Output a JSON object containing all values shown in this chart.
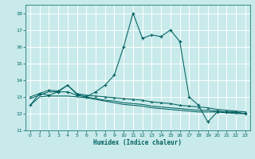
{
  "title": "",
  "xlabel": "Humidex (Indice chaleur)",
  "ylabel": "",
  "bg_color": "#c8eaea",
  "grid_color": "#ffffff",
  "line_color": "#006060",
  "xlim": [
    -0.5,
    23.5
  ],
  "ylim": [
    11,
    18.5
  ],
  "yticks": [
    11,
    12,
    13,
    14,
    15,
    16,
    17,
    18
  ],
  "xticks": [
    0,
    1,
    2,
    3,
    4,
    5,
    6,
    7,
    8,
    9,
    10,
    11,
    12,
    13,
    14,
    15,
    16,
    17,
    18,
    19,
    20,
    21,
    22,
    23
  ],
  "curve1_x": [
    0,
    1,
    2,
    3,
    4,
    5,
    6,
    7,
    8,
    9,
    10,
    11,
    12,
    13,
    14,
    15,
    16,
    17,
    18,
    19,
    20,
    21,
    22,
    23
  ],
  "curve1_y": [
    12.5,
    13.2,
    13.1,
    13.3,
    13.3,
    13.1,
    13.0,
    13.3,
    13.7,
    14.3,
    16.0,
    18.0,
    16.5,
    16.7,
    16.6,
    17.0,
    16.3,
    13.0,
    12.5,
    11.5,
    12.1,
    12.1,
    12.1,
    12.0
  ],
  "curve2_x": [
    0,
    1,
    2,
    3,
    4,
    5,
    6,
    7,
    8,
    9,
    10,
    11,
    12,
    13,
    14,
    15,
    16,
    17,
    18,
    19,
    20,
    21,
    22,
    23
  ],
  "curve2_y": [
    13.0,
    13.2,
    13.4,
    13.35,
    13.7,
    13.2,
    13.1,
    13.05,
    13.0,
    12.95,
    12.9,
    12.85,
    12.8,
    12.7,
    12.65,
    12.6,
    12.5,
    12.45,
    12.4,
    12.35,
    12.25,
    12.2,
    12.15,
    12.1
  ],
  "curve3_x": [
    0,
    1,
    2,
    3,
    4,
    5,
    6,
    7,
    8,
    9,
    10,
    11,
    12,
    13,
    14,
    15,
    16,
    17,
    18,
    19,
    20,
    21,
    22,
    23
  ],
  "curve3_y": [
    12.9,
    13.1,
    13.3,
    13.3,
    13.7,
    13.15,
    13.0,
    12.9,
    12.8,
    12.75,
    12.65,
    12.6,
    12.55,
    12.45,
    12.4,
    12.35,
    12.3,
    12.25,
    12.2,
    12.2,
    12.15,
    12.1,
    12.05,
    12.0
  ],
  "curve4_x": [
    0,
    1,
    2,
    3,
    4,
    5,
    6,
    7,
    8,
    9,
    10,
    11,
    12,
    13,
    14,
    15,
    16,
    17,
    18,
    19,
    20,
    21,
    22,
    23
  ],
  "curve4_y": [
    12.5,
    13.0,
    13.05,
    13.05,
    13.05,
    13.0,
    12.95,
    12.85,
    12.75,
    12.65,
    12.55,
    12.5,
    12.45,
    12.35,
    12.3,
    12.25,
    12.2,
    12.15,
    12.1,
    12.1,
    12.1,
    12.05,
    12.0,
    12.0
  ]
}
